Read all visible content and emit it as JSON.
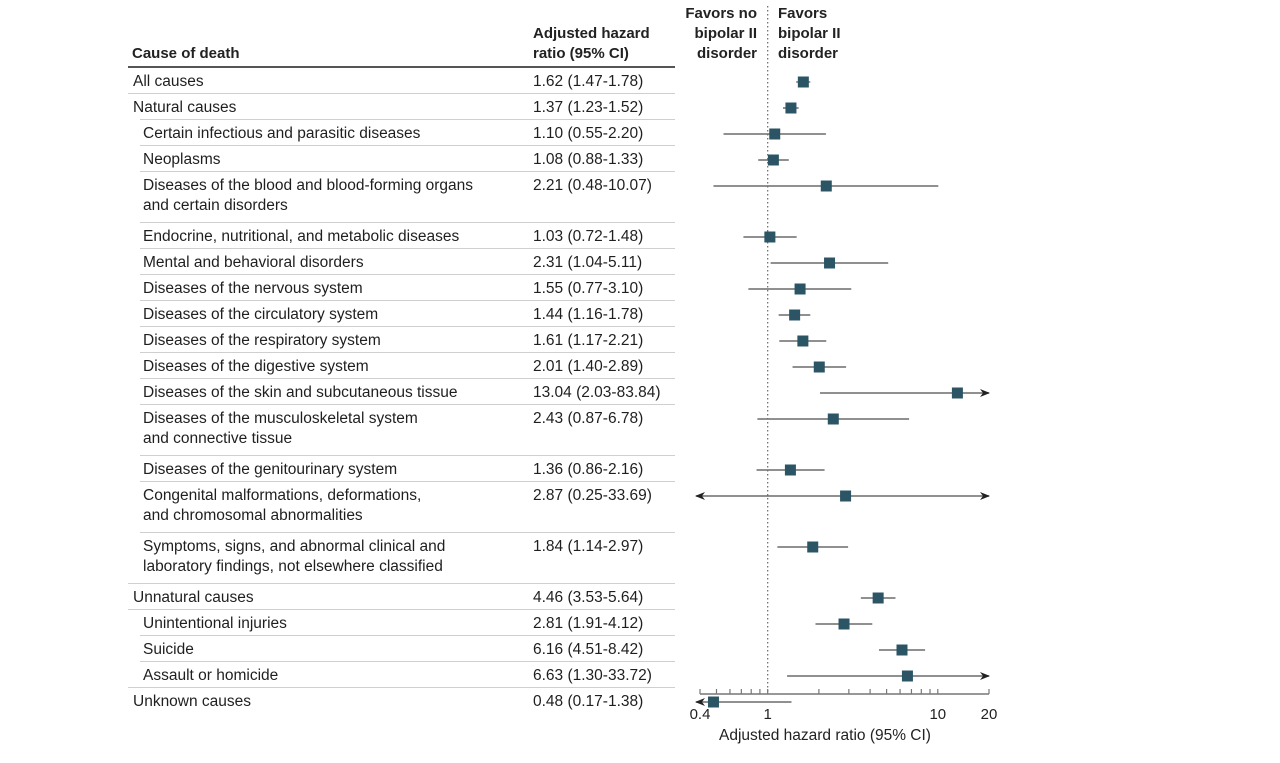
{
  "chart_data": {
    "type": "forest",
    "title": "",
    "column_headers": {
      "cause": "Cause of death",
      "hr_line1": "Adjusted hazard",
      "hr_line2": "ratio (95% CI)"
    },
    "favors_left": [
      "Favors no",
      "bipolar II",
      "disorder"
    ],
    "favors_right": [
      "Favors",
      "bipolar II",
      "disorder"
    ],
    "xlabel": "Adjusted hazard ratio (95% CI)",
    "xscale": "log",
    "xlim": [
      0.4,
      20
    ],
    "xticks_labeled": [
      {
        "value": 0.4,
        "label": "0.4"
      },
      {
        "value": 1,
        "label": "1"
      },
      {
        "value": 10,
        "label": "10"
      },
      {
        "value": 20,
        "label": "20"
      }
    ],
    "xticks_minor": [
      0.5,
      0.6,
      0.7,
      0.8,
      0.9,
      2,
      3,
      4,
      5,
      6,
      7,
      8,
      9
    ],
    "reference_line": 1,
    "rows": [
      {
        "label": [
          "All causes"
        ],
        "indent": 0,
        "text": "1.62 (1.47-1.78)",
        "hr": 1.62,
        "lo": 1.47,
        "hi": 1.78
      },
      {
        "label": [
          "Natural causes"
        ],
        "indent": 0,
        "text": "1.37 (1.23-1.52)",
        "hr": 1.37,
        "lo": 1.23,
        "hi": 1.52
      },
      {
        "label": [
          "Certain infectious and parasitic diseases"
        ],
        "indent": 1,
        "text": "1.10 (0.55-2.20)",
        "hr": 1.1,
        "lo": 0.55,
        "hi": 2.2
      },
      {
        "label": [
          "Neoplasms"
        ],
        "indent": 1,
        "text": "1.08 (0.88-1.33)",
        "hr": 1.08,
        "lo": 0.88,
        "hi": 1.33
      },
      {
        "label": [
          "Diseases of the blood and blood-forming organs",
          "and certain disorders"
        ],
        "indent": 1,
        "text": "2.21 (0.48-10.07)",
        "hr": 2.21,
        "lo": 0.48,
        "hi": 10.07
      },
      {
        "label": [
          "Endocrine, nutritional, and metabolic diseases"
        ],
        "indent": 1,
        "text": "1.03 (0.72-1.48)",
        "hr": 1.03,
        "lo": 0.72,
        "hi": 1.48
      },
      {
        "label": [
          "Mental and behavioral disorders"
        ],
        "indent": 1,
        "text": "2.31 (1.04-5.11)",
        "hr": 2.31,
        "lo": 1.04,
        "hi": 5.11
      },
      {
        "label": [
          "Diseases of the nervous system"
        ],
        "indent": 1,
        "text": "1.55 (0.77-3.10)",
        "hr": 1.55,
        "lo": 0.77,
        "hi": 3.1
      },
      {
        "label": [
          "Diseases of the circulatory system"
        ],
        "indent": 1,
        "text": "1.44 (1.16-1.78)",
        "hr": 1.44,
        "lo": 1.16,
        "hi": 1.78
      },
      {
        "label": [
          "Diseases of the respiratory system"
        ],
        "indent": 1,
        "text": "1.61 (1.17-2.21)",
        "hr": 1.61,
        "lo": 1.17,
        "hi": 2.21
      },
      {
        "label": [
          "Diseases of the digestive system"
        ],
        "indent": 1,
        "text": "2.01 (1.40-2.89)",
        "hr": 2.01,
        "lo": 1.4,
        "hi": 2.89
      },
      {
        "label": [
          "Diseases of the skin and subcutaneous tissue"
        ],
        "indent": 1,
        "text": "13.04 (2.03-83.84)",
        "hr": 13.04,
        "lo": 2.03,
        "hi": 83.84
      },
      {
        "label": [
          "Diseases of the musculoskeletal system",
          "and connective tissue"
        ],
        "indent": 1,
        "text": "2.43 (0.87-6.78)",
        "hr": 2.43,
        "lo": 0.87,
        "hi": 6.78
      },
      {
        "label": [
          "Diseases of the genitourinary system"
        ],
        "indent": 1,
        "text": "1.36 (0.86-2.16)",
        "hr": 1.36,
        "lo": 0.86,
        "hi": 2.16
      },
      {
        "label": [
          "Congenital malformations, deformations,",
          "and chromosomal abnormalities"
        ],
        "indent": 1,
        "text": "2.87 (0.25-33.69)",
        "hr": 2.87,
        "lo": 0.25,
        "hi": 33.69
      },
      {
        "label": [
          "Symptoms, signs, and abnormal clinical and",
          "laboratory findings, not elsewhere classified"
        ],
        "indent": 1,
        "text": "1.84 (1.14-2.97)",
        "hr": 1.84,
        "lo": 1.14,
        "hi": 2.97
      },
      {
        "label": [
          "Unnatural causes"
        ],
        "indent": 0,
        "text": "4.46 (3.53-5.64)",
        "hr": 4.46,
        "lo": 3.53,
        "hi": 5.64
      },
      {
        "label": [
          "Unintentional injuries"
        ],
        "indent": 1,
        "text": "2.81 (1.91-4.12)",
        "hr": 2.81,
        "lo": 1.91,
        "hi": 4.12
      },
      {
        "label": [
          "Suicide"
        ],
        "indent": 1,
        "text": "6.16 (4.51-8.42)",
        "hr": 6.16,
        "lo": 4.51,
        "hi": 8.42
      },
      {
        "label": [
          "Assault or homicide"
        ],
        "indent": 1,
        "text": "6.63 (1.30-33.72)",
        "hr": 6.63,
        "lo": 1.3,
        "hi": 33.72
      },
      {
        "label": [
          "Unknown causes"
        ],
        "indent": 0,
        "text": "0.48 (0.17-1.38)",
        "hr": 0.48,
        "lo": 0.17,
        "hi": 1.38
      }
    ],
    "colors": {
      "marker": "#2b5464",
      "ci_line": "#6b6b6b",
      "reference_line": "#666666",
      "axis": "#777777"
    }
  }
}
